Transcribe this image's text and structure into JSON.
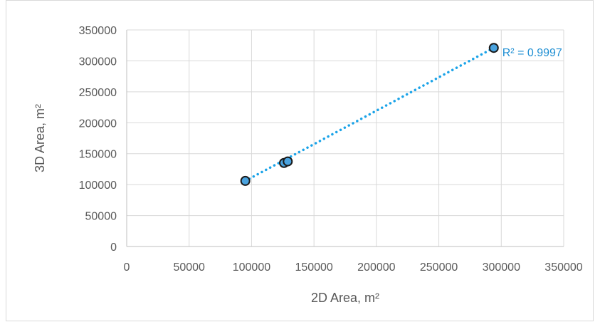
{
  "chart_data": {
    "type": "scatter",
    "title": "",
    "xlabel": "2D Area, m²",
    "ylabel": "3D Area, m²",
    "xlim": [
      0,
      350000
    ],
    "ylim": [
      0,
      350000
    ],
    "x_ticks": [
      0,
      50000,
      100000,
      150000,
      200000,
      250000,
      300000,
      350000
    ],
    "y_ticks": [
      0,
      50000,
      100000,
      150000,
      200000,
      250000,
      300000,
      350000
    ],
    "x_tick_labels": [
      "0",
      "50000",
      "100000",
      "150000",
      "200000",
      "250000",
      "300000",
      "350000"
    ],
    "y_tick_labels": [
      "0",
      "50000",
      "100000",
      "150000",
      "200000",
      "250000",
      "300000",
      "350000"
    ],
    "grid": true,
    "legend": "none",
    "series": [
      {
        "values": [
          {
            "x": 95000,
            "y": 106000
          },
          {
            "x": 126000,
            "y": 135000
          },
          {
            "x": 129000,
            "y": 137500
          },
          {
            "x": 294000,
            "y": 321000
          }
        ],
        "marker_fill": "#4aa3df",
        "marker_edge": "#1a1a1a"
      }
    ],
    "trendline": {
      "type": "linear",
      "x_range": [
        95000,
        294000
      ],
      "y_range": [
        106000,
        321000
      ],
      "color": "#1aa3e8",
      "style": "dotted",
      "r_squared_label": "R² = 0.9997"
    },
    "colors": {
      "grid": "#d9d9d9",
      "axis": "#bfbfbf",
      "text": "#595959",
      "annotation": "#1f8fd3"
    }
  }
}
